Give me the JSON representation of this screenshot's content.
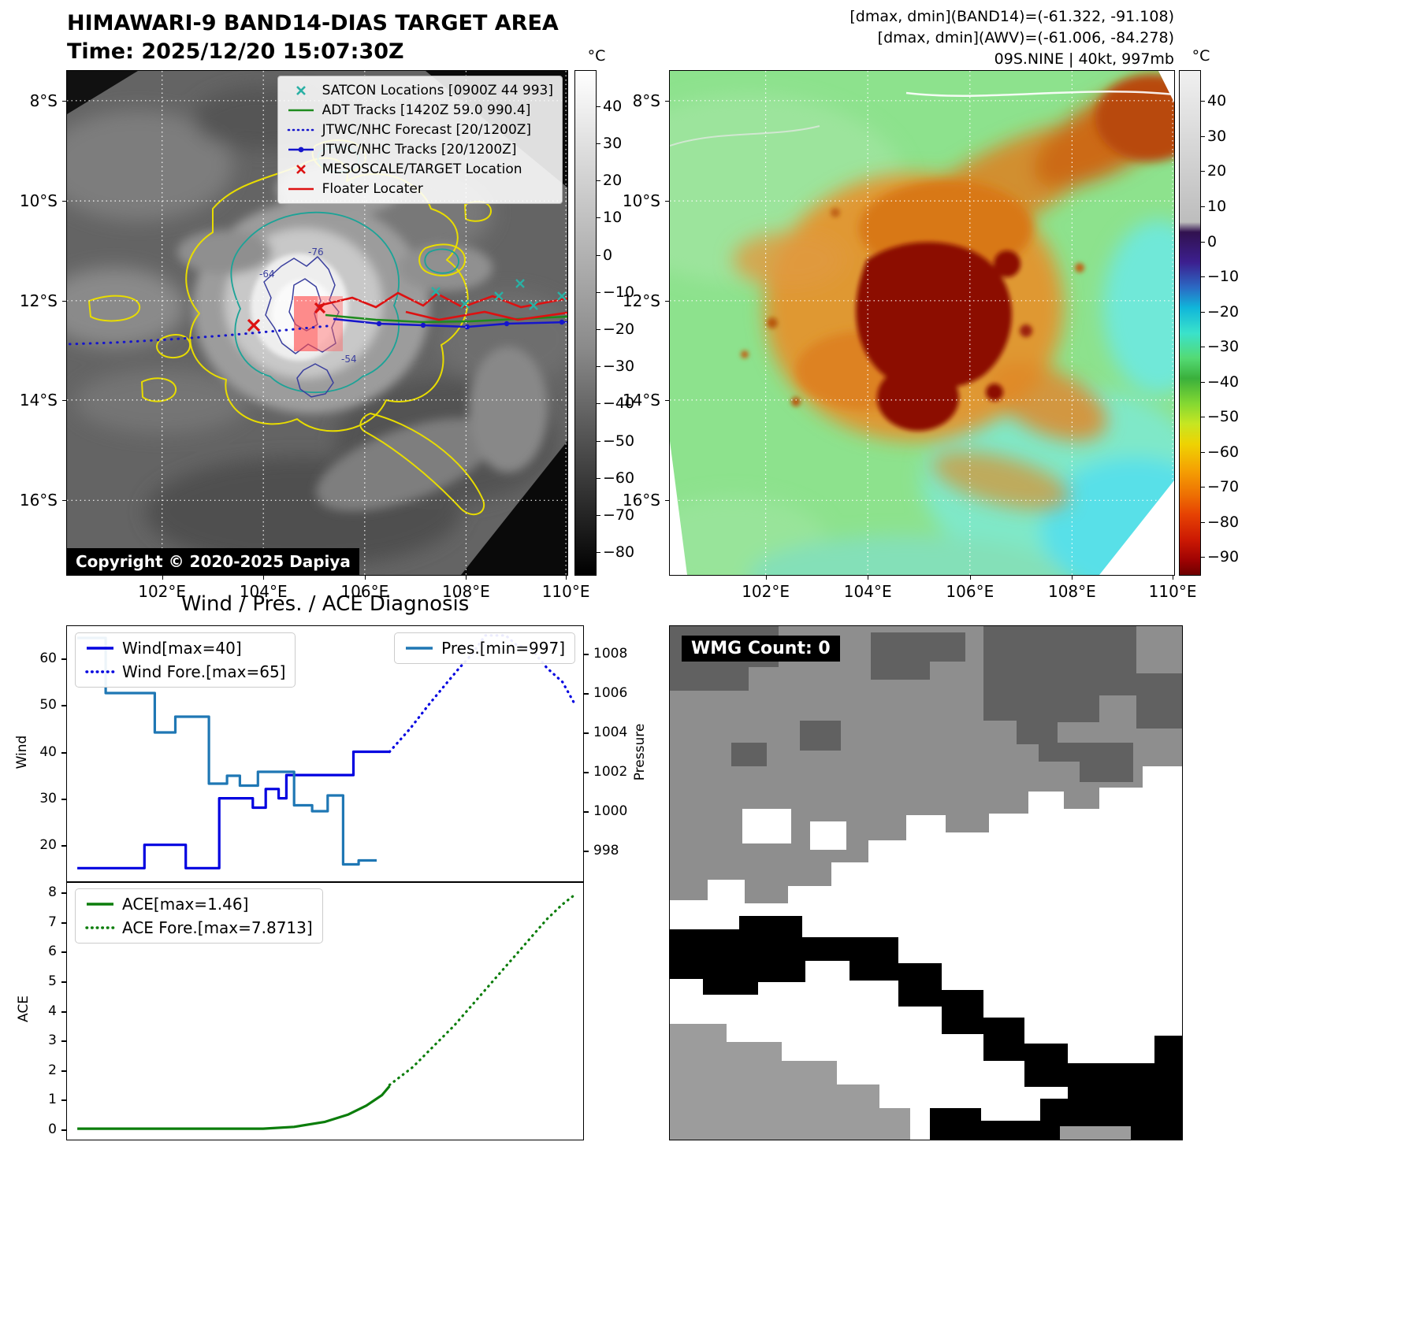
{
  "figure": {
    "diagnosis_title": "Wind / Pres. / ACE Diagnosis"
  },
  "panel_band14": {
    "title": "HIMAWARI-9 BAND14-DIAS TARGET AREA",
    "subtitle": "Time: 2025/12/20 15:07:30Z",
    "copyright": "Copyright © 2020-2025 Dapiya",
    "x_ticks": [
      "102°E",
      "104°E",
      "106°E",
      "108°E",
      "110°E"
    ],
    "y_ticks": [
      "8°S",
      "10°S",
      "12°S",
      "14°S",
      "16°S"
    ],
    "contour_labels": [
      "-76",
      "-54",
      "-64"
    ],
    "legend": [
      {
        "label": "SATCON Locations [0900Z 44 993]",
        "marker": "x",
        "color": "#2ab0a4"
      },
      {
        "label": "ADT Tracks [1420Z 59.0 990.4]",
        "marker": "line",
        "color": "#1e8b1e"
      },
      {
        "label": "JTWC/NHC Forecast [20/1200Z]",
        "marker": "dotted",
        "color": "#1515cc"
      },
      {
        "label": "JTWC/NHC Tracks [20/1200Z]",
        "marker": "line-dot",
        "color": "#1515cc"
      },
      {
        "label": "MESOSCALE/TARGET Location",
        "marker": "x",
        "color": "#dd1111"
      },
      {
        "label": "Floater Locater",
        "marker": "line",
        "color": "#dd1111"
      }
    ],
    "colorbar": {
      "unit": "°C",
      "ticks": [
        "40",
        "30",
        "20",
        "10",
        "0",
        "−10",
        "−20",
        "−30",
        "−40",
        "−50",
        "−60",
        "−70",
        "−80"
      ],
      "stops": [
        [
          "0%",
          "#ffffff"
        ],
        [
          "55%",
          "#8a8a8a"
        ],
        [
          "100%",
          "#000000"
        ]
      ]
    }
  },
  "panel_awv": {
    "header_lines": [
      "[dmax, dmin](BAND14)=(-61.322, -91.108)",
      "[dmax, dmin](AWV)=(-61.006, -84.278)",
      "09S.NINE | 40kt, 997mb"
    ],
    "x_ticks": [
      "102°E",
      "104°E",
      "106°E",
      "108°E",
      "110°E"
    ],
    "y_ticks": [
      "8°S",
      "10°S",
      "12°S",
      "14°S",
      "16°S"
    ],
    "colorbar": {
      "unit": "°C",
      "ticks": [
        "40",
        "30",
        "20",
        "10",
        "0",
        "−10",
        "−20",
        "−30",
        "−40",
        "−50",
        "−60",
        "−70",
        "−80",
        "−90"
      ],
      "stops": [
        [
          "0%",
          "#f0f0f0"
        ],
        [
          "30%",
          "#bdbdbd"
        ],
        [
          "32%",
          "#31114f"
        ],
        [
          "38%",
          "#3c1f8f"
        ],
        [
          "43%",
          "#2b6ac4"
        ],
        [
          "47%",
          "#10b6da"
        ],
        [
          "52%",
          "#3ae2cb"
        ],
        [
          "57%",
          "#54da74"
        ],
        [
          "61%",
          "#3ab03c"
        ],
        [
          "66%",
          "#84d832"
        ],
        [
          "70%",
          "#c6e622"
        ],
        [
          "74%",
          "#eed303"
        ],
        [
          "79%",
          "#f5a303"
        ],
        [
          "84%",
          "#ee7103"
        ],
        [
          "88%",
          "#e64203"
        ],
        [
          "93%",
          "#cc1903"
        ],
        [
          "97%",
          "#a00303"
        ],
        [
          "100%",
          "#6e0000"
        ]
      ]
    }
  },
  "panel_wmg": {
    "label": "WMG Count: 0"
  },
  "chart_data": [
    {
      "type": "line",
      "title": "Wind / Pres. / ACE Diagnosis",
      "ylabel": "Wind",
      "y2label": "Pressure",
      "ylim": [
        12,
        67
      ],
      "y2lim": [
        996.4,
        1009.4
      ],
      "yticks": [
        20,
        30,
        40,
        50,
        60
      ],
      "y2ticks": [
        998,
        1000,
        1002,
        1004,
        1006,
        1008
      ],
      "legend_note": "x axis shown as fraction of time window; no x tick labels in source figure",
      "series": [
        {
          "name": "Wind[max=40]",
          "axis": "y1",
          "style": "solid",
          "color": "#0000e0",
          "points": [
            [
              0.02,
              15
            ],
            [
              0.15,
              15
            ],
            [
              0.15,
              20
            ],
            [
              0.23,
              20
            ],
            [
              0.23,
              15
            ],
            [
              0.295,
              15
            ],
            [
              0.295,
              30
            ],
            [
              0.36,
              30
            ],
            [
              0.36,
              28
            ],
            [
              0.385,
              28
            ],
            [
              0.385,
              32
            ],
            [
              0.41,
              32
            ],
            [
              0.41,
              30
            ],
            [
              0.425,
              30
            ],
            [
              0.425,
              35
            ],
            [
              0.555,
              35
            ],
            [
              0.555,
              40
            ],
            [
              0.625,
              40
            ]
          ]
        },
        {
          "name": "Wind Fore.[max=65]",
          "axis": "y1",
          "style": "dotted",
          "color": "#0000e0",
          "points": [
            [
              0.625,
              40
            ],
            [
              0.665,
              45
            ],
            [
              0.7,
              50
            ],
            [
              0.73,
              54
            ],
            [
              0.76,
              58
            ],
            [
              0.785,
              61
            ],
            [
              0.81,
              65
            ],
            [
              0.85,
              65
            ],
            [
              0.87,
              63
            ],
            [
              0.9,
              62
            ],
            [
              0.93,
              58
            ],
            [
              0.96,
              55
            ],
            [
              0.985,
              50
            ]
          ]
        },
        {
          "name": "Pres.[min=997]",
          "axis": "y2",
          "style": "solid",
          "color": "#1f77b4",
          "points": [
            [
              0.02,
              1008.8
            ],
            [
              0.075,
              1008.8
            ],
            [
              0.075,
              1006
            ],
            [
              0.17,
              1006
            ],
            [
              0.17,
              1004
            ],
            [
              0.21,
              1004
            ],
            [
              0.21,
              1004.8
            ],
            [
              0.275,
              1004.8
            ],
            [
              0.275,
              1001.4
            ],
            [
              0.31,
              1001.4
            ],
            [
              0.31,
              1001.8
            ],
            [
              0.335,
              1001.8
            ],
            [
              0.335,
              1001.3
            ],
            [
              0.37,
              1001.3
            ],
            [
              0.37,
              1002
            ],
            [
              0.44,
              1002
            ],
            [
              0.44,
              1000.3
            ],
            [
              0.475,
              1000.3
            ],
            [
              0.475,
              1000
            ],
            [
              0.505,
              1000
            ],
            [
              0.505,
              1000.8
            ],
            [
              0.535,
              1000.8
            ],
            [
              0.535,
              997.3
            ],
            [
              0.565,
              997.3
            ],
            [
              0.565,
              997.5
            ],
            [
              0.6,
              997.5
            ]
          ]
        }
      ]
    },
    {
      "type": "line",
      "ylabel": "ACE",
      "ylim": [
        -0.35,
        8.35
      ],
      "yticks": [
        0,
        1,
        2,
        3,
        4,
        5,
        6,
        7,
        8
      ],
      "series": [
        {
          "name": "ACE[max=1.46]",
          "axis": "y1",
          "style": "solid",
          "color": "#0b7d0b",
          "points": [
            [
              0.02,
              0.02
            ],
            [
              0.38,
              0.02
            ],
            [
              0.44,
              0.08
            ],
            [
              0.5,
              0.25
            ],
            [
              0.545,
              0.5
            ],
            [
              0.58,
              0.8
            ],
            [
              0.61,
              1.15
            ],
            [
              0.625,
              1.46
            ]
          ]
        },
        {
          "name": "ACE Fore.[max=7.8713]",
          "axis": "y1",
          "style": "dotted",
          "color": "#0b7d0b",
          "points": [
            [
              0.625,
              1.5
            ],
            [
              0.67,
              2.1
            ],
            [
              0.71,
              2.8
            ],
            [
              0.75,
              3.5
            ],
            [
              0.79,
              4.3
            ],
            [
              0.83,
              5.1
            ],
            [
              0.87,
              5.9
            ],
            [
              0.9,
              6.5
            ],
            [
              0.93,
              7.1
            ],
            [
              0.96,
              7.6
            ],
            [
              0.98,
              7.87
            ]
          ]
        }
      ]
    }
  ]
}
